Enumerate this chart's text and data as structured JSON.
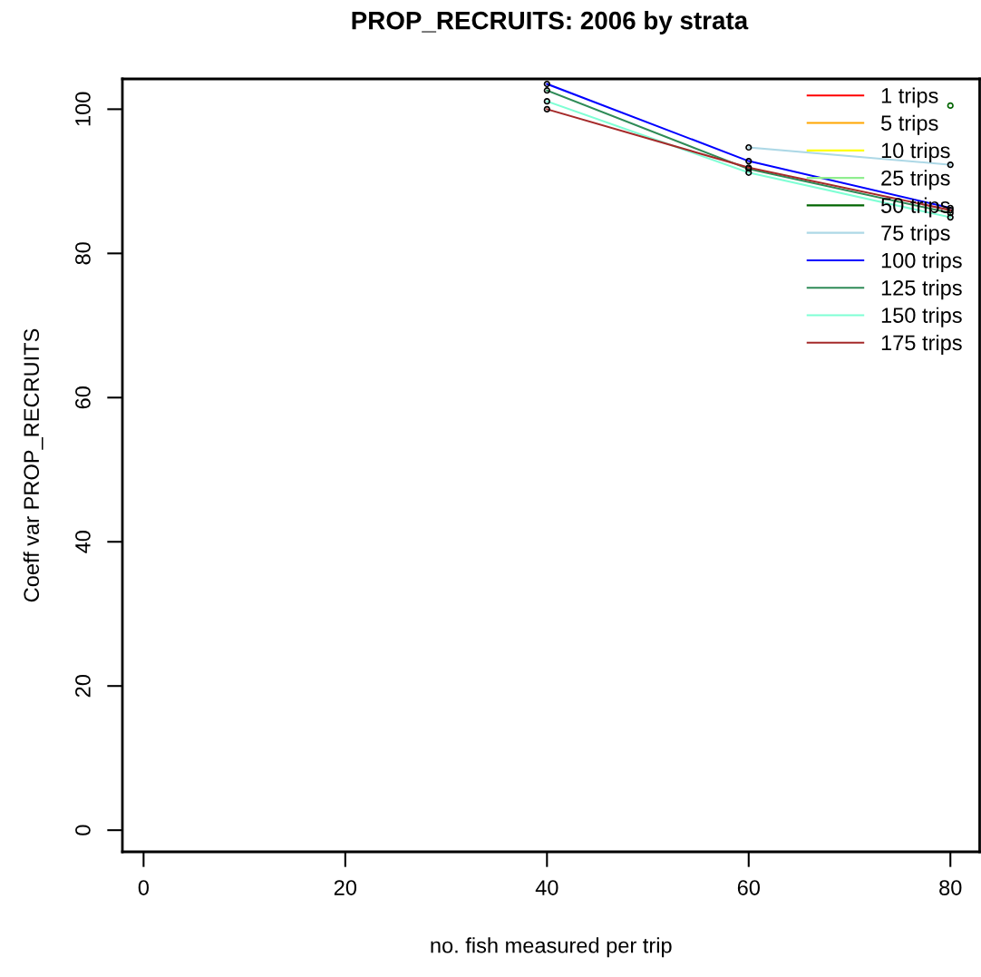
{
  "chart_data": {
    "type": "line",
    "title": "PROP_RECRUITS: 2006 by strata",
    "xlabel": "no. fish measured per trip",
    "ylabel": "Coeff var PROP_RECRUITS",
    "x": [
      40,
      60,
      80
    ],
    "xlim": [
      -2.1,
      82.9
    ],
    "ylim": [
      -3.0,
      104.2
    ],
    "xticks": [
      0,
      20,
      40,
      60,
      80
    ],
    "yticks": [
      0,
      20,
      40,
      60,
      80,
      100
    ],
    "marker": "circle",
    "line_style": "solid",
    "grid": false,
    "legend": "top right",
    "series": [
      {
        "name": "1 trips",
        "color": "#ff0000",
        "values": [
          null,
          null,
          null
        ]
      },
      {
        "name": "5 trips",
        "color": "#ffa500",
        "values": [
          null,
          null,
          null
        ]
      },
      {
        "name": "10 trips",
        "color": "#ffff00",
        "values": [
          null,
          null,
          null
        ]
      },
      {
        "name": "25 trips",
        "color": "#90ee90",
        "values": [
          null,
          null,
          null
        ]
      },
      {
        "name": "50 trips",
        "color": "#006400",
        "values": [
          null,
          null,
          100.5
        ]
      },
      {
        "name": "75 trips",
        "color": "#add8e6",
        "values": [
          null,
          94.7,
          92.3
        ]
      },
      {
        "name": "100 trips",
        "color": "#0000ff",
        "values": [
          103.5,
          92.8,
          86.3
        ]
      },
      {
        "name": "125 trips",
        "color": "#2e8b57",
        "values": [
          102.6,
          91.7,
          85.6
        ]
      },
      {
        "name": "150 trips",
        "color": "#7fffd4",
        "values": [
          101.1,
          91.2,
          85.0
        ]
      },
      {
        "name": "175 trips",
        "color": "#a52a2a",
        "values": [
          100.0,
          91.9,
          86.0
        ]
      }
    ]
  }
}
